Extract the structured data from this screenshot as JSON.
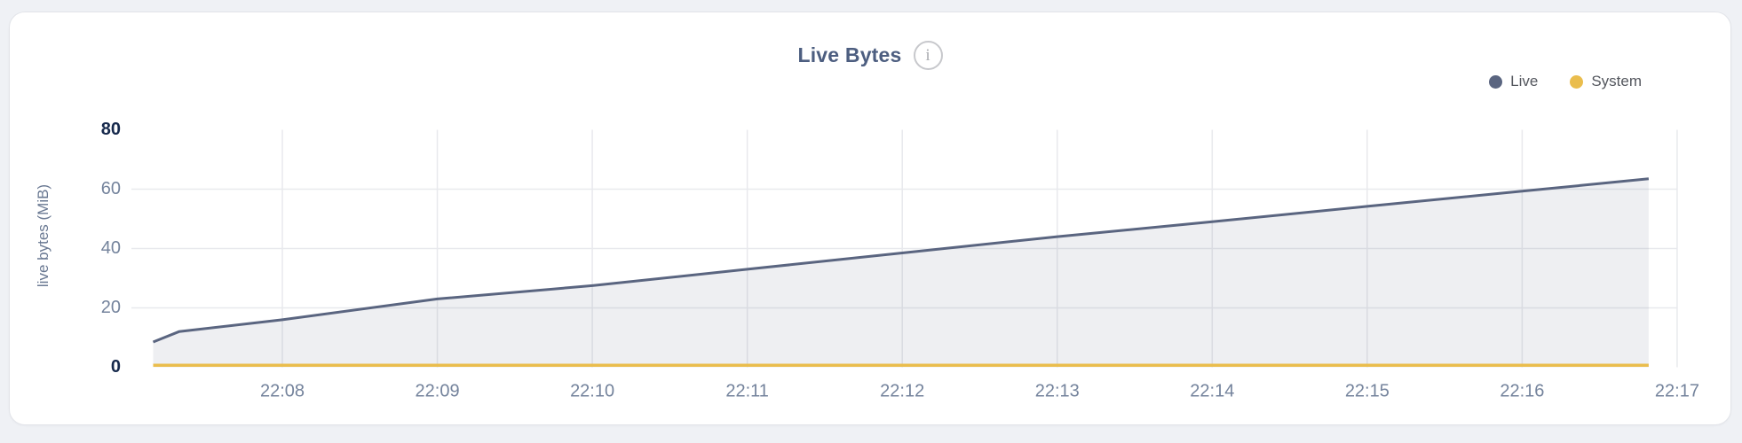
{
  "chart": {
    "info_icon_glyph": "i"
  },
  "chart_data": {
    "type": "area",
    "title": "Live Bytes",
    "ylabel": "live bytes (MiB)",
    "ylim": [
      0,
      80
    ],
    "yticks": [
      0,
      20,
      40,
      60,
      80
    ],
    "xticks": [
      "22:08",
      "22:09",
      "22:10",
      "22:11",
      "22:12",
      "22:13",
      "22:14",
      "22:15",
      "22:16",
      "22:17"
    ],
    "grid": true,
    "legend_position": "top-right",
    "series": [
      {
        "name": "Live",
        "color": "#5a6580",
        "area": true,
        "points": [
          [
            "22:07:10",
            8.5
          ],
          [
            "22:07:20",
            12
          ],
          [
            "22:08:00",
            16
          ],
          [
            "22:09:00",
            23
          ],
          [
            "22:10:00",
            27.5
          ],
          [
            "22:11:00",
            33
          ],
          [
            "22:12:00",
            38.5
          ],
          [
            "22:13:00",
            44
          ],
          [
            "22:14:00",
            49
          ],
          [
            "22:15:00",
            54.2
          ],
          [
            "22:16:00",
            59.3
          ],
          [
            "22:16:49",
            63.5
          ]
        ]
      },
      {
        "name": "System",
        "color": "#eabd4d",
        "area": false,
        "points": [
          [
            "22:07:10",
            0.7
          ],
          [
            "22:16:49",
            0.7
          ]
        ]
      }
    ]
  },
  "colors": {
    "gridline": "#e8e9ed",
    "axis_tick": "#74839c",
    "axis_tick_strong": "#16294c",
    "title": "#4d5e80",
    "legend_text": "#54575e",
    "card_border": "#e2e4e9",
    "page_background": "#eff1f5"
  }
}
